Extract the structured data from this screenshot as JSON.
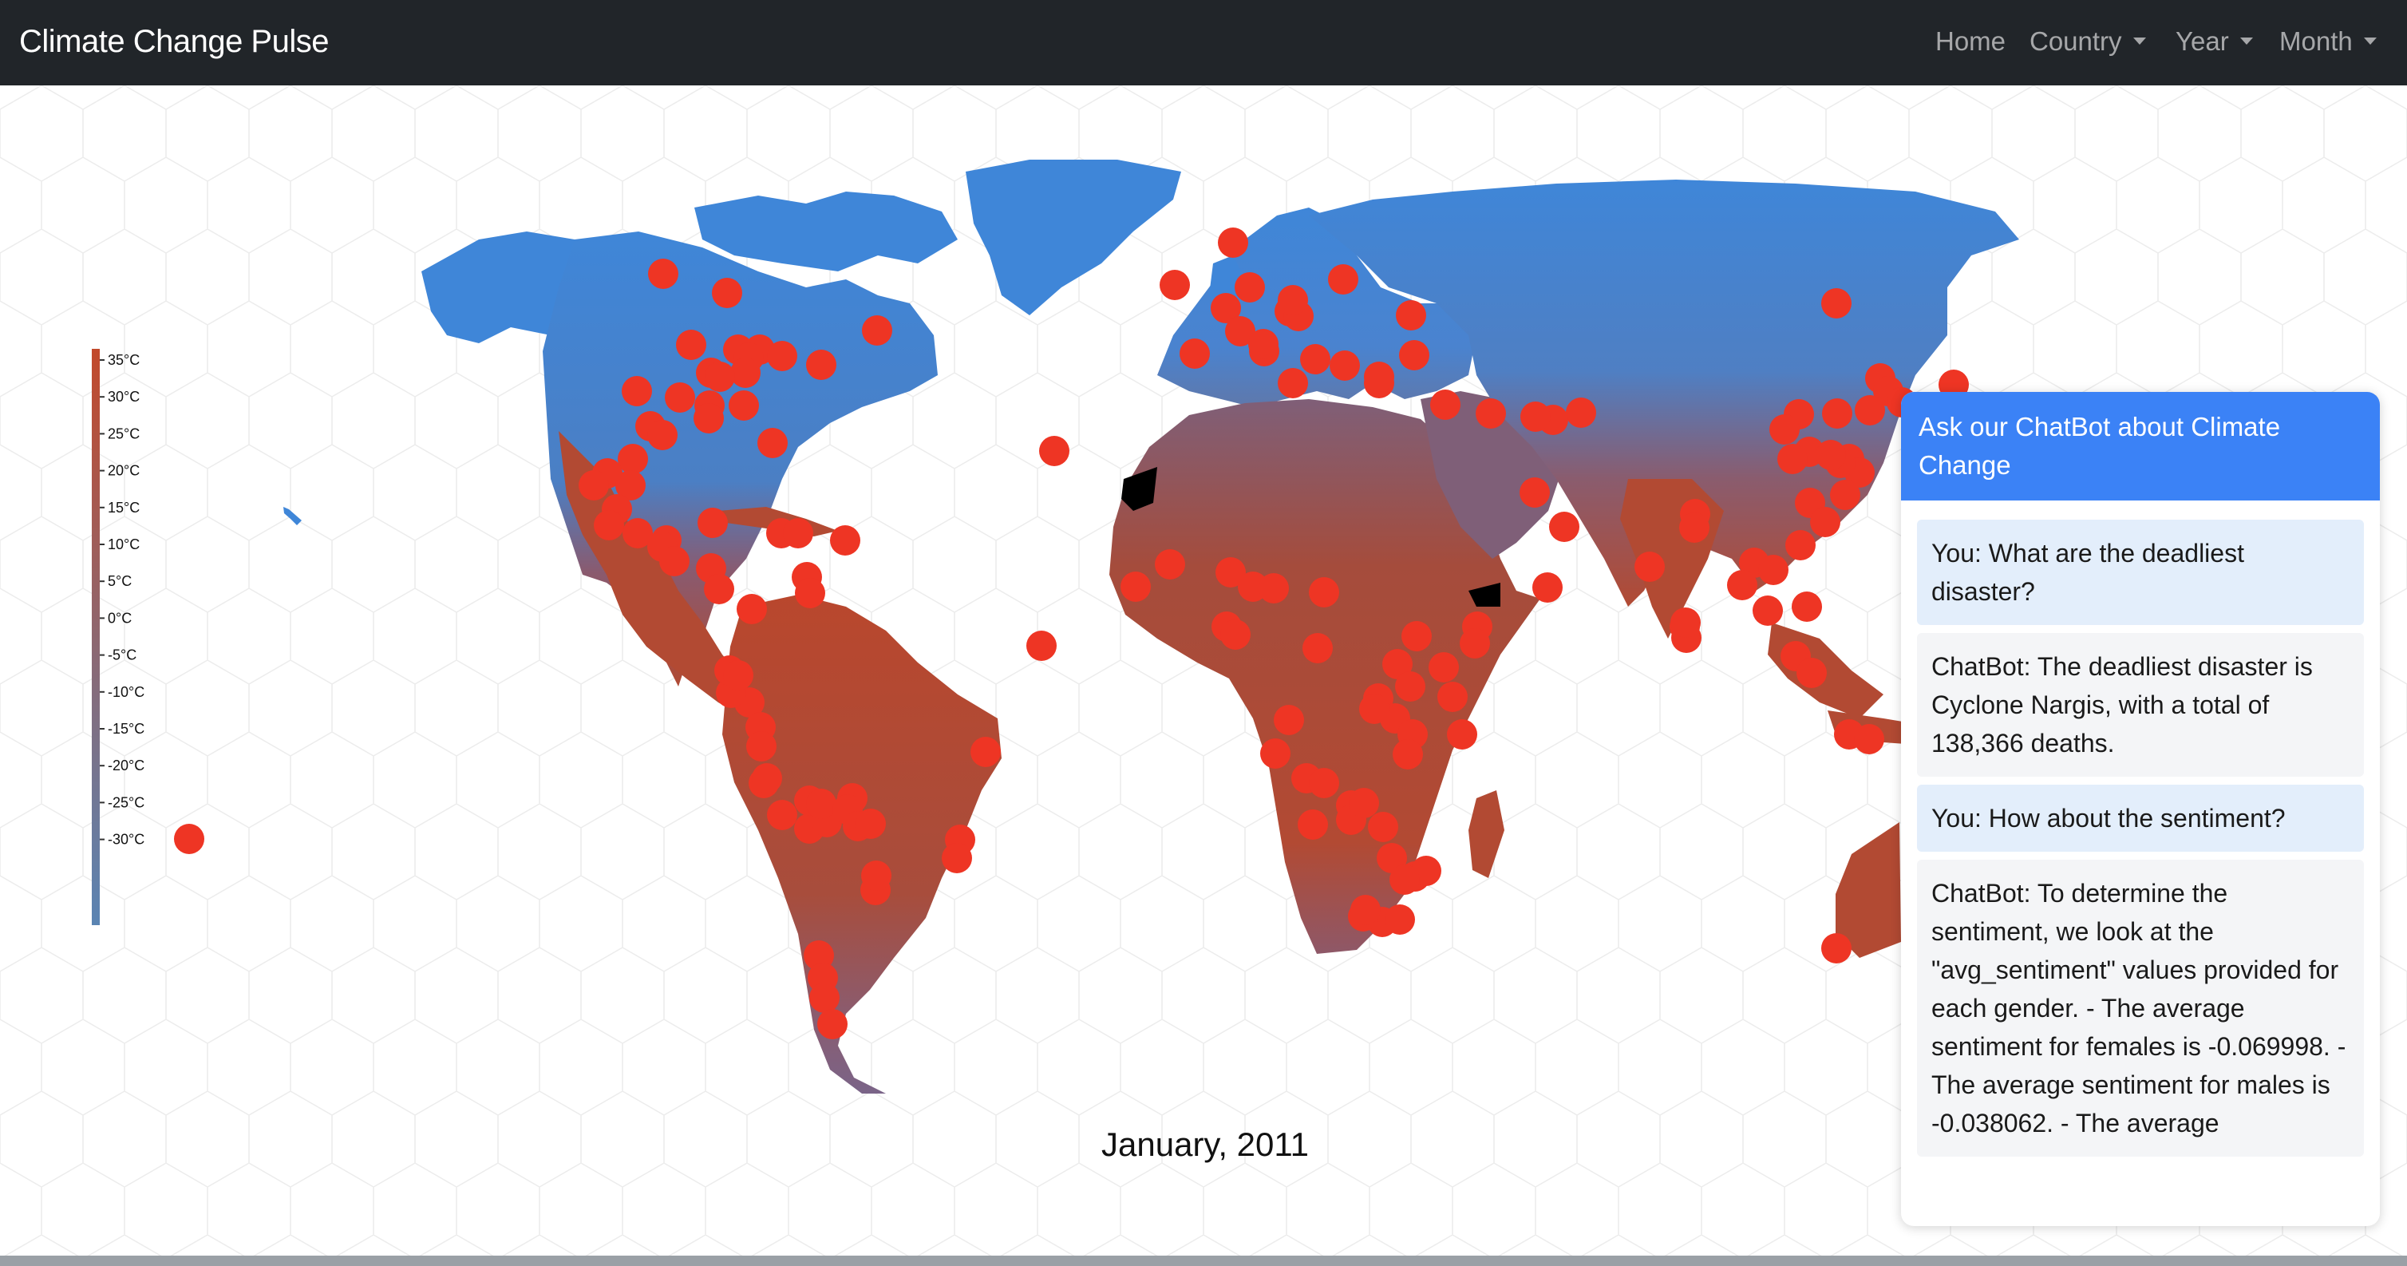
{
  "navbar": {
    "brand": "Climate Change Pulse",
    "items": [
      {
        "label": "Home",
        "dropdown": false
      },
      {
        "label": "Country",
        "dropdown": true
      },
      {
        "label": "Year",
        "dropdown": true
      },
      {
        "label": "Month",
        "dropdown": true
      }
    ]
  },
  "map": {
    "date_label": "January, 2011",
    "marker_color": "#ee3524",
    "ocean_color": "#ffffff",
    "cold_color": "#3f86d8",
    "warm_color": "#b9472d"
  },
  "chart_data": {
    "type": "heatmap",
    "title": "",
    "legend": {
      "unit": "°C",
      "ticks": [
        "35°C",
        "30°C",
        "25°C",
        "20°C",
        "15°C",
        "10°C",
        "5°C",
        "0°C",
        "-5°C",
        "-10°C",
        "-15°C",
        "-20°C",
        "-25°C",
        "-30°C"
      ],
      "range": [
        -30,
        35
      ],
      "colors": [
        "#5a84b3",
        "#c2492b"
      ]
    }
  },
  "chatbot": {
    "title": "Ask our ChatBot about Climate Change",
    "messages": [
      {
        "role": "user",
        "text": "You: What are the deadliest disaster?"
      },
      {
        "role": "bot",
        "text": "ChatBot: The deadliest disaster is Cyclone Nargis, with a total of 138,366 deaths."
      },
      {
        "role": "user",
        "text": "You: How about the sentiment?"
      },
      {
        "role": "bot",
        "text": "ChatBot: To determine the sentiment, we look at the \"avg_sentiment\" values provided for each gender. - The average sentiment for females is -0.069998. - The average sentiment for males is -0.038062. - The average"
      }
    ]
  }
}
